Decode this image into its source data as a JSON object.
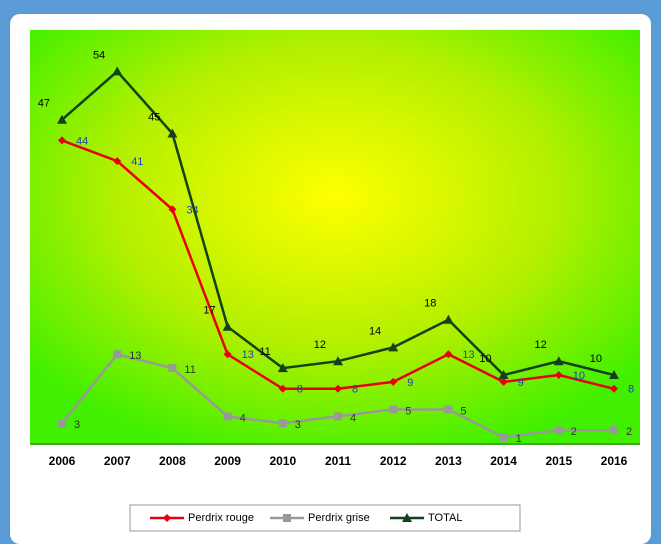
{
  "chart_data": {
    "type": "line",
    "categories": [
      "2006",
      "2007",
      "2008",
      "2009",
      "2010",
      "2011",
      "2012",
      "2013",
      "2014",
      "2015",
      "2016"
    ],
    "ylim": [
      0,
      60
    ],
    "series": [
      {
        "name": "Perdrix rouge",
        "color": "#e8000b",
        "label_color": "#1f3fc0",
        "marker": "diamond",
        "values": [
          44,
          41,
          34,
          13,
          8,
          8,
          9,
          13,
          9,
          10,
          8
        ]
      },
      {
        "name": "Perdrix grise",
        "color": "#999999",
        "label_color": "#333333",
        "marker": "square",
        "values": [
          3,
          13,
          11,
          4,
          3,
          4,
          5,
          5,
          1,
          2,
          2
        ]
      },
      {
        "name": "TOTAL",
        "color": "#14401a",
        "label_color": "#000000",
        "marker": "triangle",
        "values": [
          47,
          54,
          45,
          17,
          11,
          12,
          14,
          18,
          10,
          12,
          10
        ]
      }
    ]
  }
}
